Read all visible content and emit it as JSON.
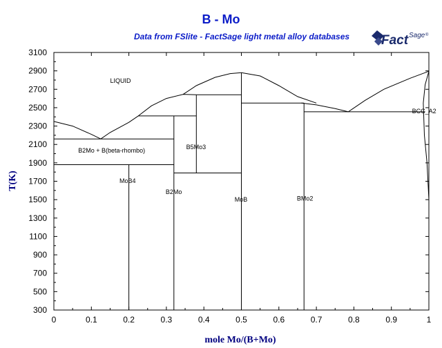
{
  "title": "B - Mo",
  "subtitle": "Data from FSlite - FactSage light metal alloy databases",
  "logo": {
    "main": "Fact",
    "sup": "Sage",
    "mark": "®",
    "color": "#1a2a6c"
  },
  "colors": {
    "title": "#0b1cc8",
    "axis_title": "#000080",
    "lines": "#000000"
  },
  "chart_data": {
    "type": "phase-diagram",
    "xlabel": "mole Mo/(B+Mo)",
    "ylabel": "T(K)",
    "xlim": [
      0,
      1
    ],
    "ylim": [
      300,
      3100
    ],
    "xticks": [
      0,
      0.1,
      0.2,
      0.3,
      0.4,
      0.5,
      0.6,
      0.7,
      0.8,
      0.9,
      1
    ],
    "xtick_labels": [
      "0",
      "0.1",
      "0.2",
      "0.3",
      "0.4",
      "0.5",
      "0.6",
      "0.7",
      "0.8",
      "0.9",
      "1"
    ],
    "yticks": [
      300,
      500,
      700,
      900,
      1100,
      1300,
      1500,
      1700,
      1900,
      2100,
      2300,
      2500,
      2700,
      2900,
      3100
    ],
    "ytick_labels": [
      "300",
      "500",
      "700",
      "900",
      "1100",
      "1300",
      "1500",
      "1700",
      "1900",
      "2100",
      "2300",
      "2500",
      "2700",
      "2900",
      "3100"
    ],
    "lines": [
      {
        "name": "liquidus-b-side",
        "points": [
          [
            0,
            2350
          ],
          [
            0.05,
            2300
          ],
          [
            0.1,
            2210
          ],
          [
            0.125,
            2160
          ]
        ]
      },
      {
        "name": "liquidus-b2mo-side",
        "points": [
          [
            0.125,
            2160
          ],
          [
            0.15,
            2230
          ],
          [
            0.2,
            2340
          ],
          [
            0.225,
            2410
          ]
        ]
      },
      {
        "name": "liquidus-b2mo-top",
        "points": [
          [
            0.225,
            2410
          ],
          [
            0.26,
            2520
          ],
          [
            0.3,
            2600
          ],
          [
            0.345,
            2645
          ],
          [
            0.38,
            2640
          ]
        ]
      },
      {
        "name": "liquidus-dome-left",
        "points": [
          [
            0.345,
            2645
          ],
          [
            0.38,
            2740
          ],
          [
            0.43,
            2830
          ],
          [
            0.47,
            2870
          ],
          [
            0.5,
            2880
          ]
        ]
      },
      {
        "name": "liquidus-dome-right",
        "points": [
          [
            0.5,
            2880
          ],
          [
            0.55,
            2845
          ],
          [
            0.6,
            2740
          ],
          [
            0.65,
            2620
          ],
          [
            0.7,
            2550
          ]
        ]
      },
      {
        "name": "liquidus-bmo2-tail",
        "points": [
          [
            0.66,
            2550
          ],
          [
            0.7,
            2530
          ],
          [
            0.75,
            2490
          ],
          [
            0.785,
            2455
          ]
        ]
      },
      {
        "name": "liquidus-mo-side",
        "points": [
          [
            0.785,
            2455
          ],
          [
            0.83,
            2580
          ],
          [
            0.88,
            2700
          ],
          [
            0.95,
            2820
          ],
          [
            1,
            2896
          ]
        ]
      },
      {
        "name": "mo-solvus",
        "points": [
          [
            1,
            2896
          ],
          [
            0.99,
            2750
          ],
          [
            0.985,
            2550
          ],
          [
            0.988,
            2200
          ],
          [
            0.995,
            1900
          ],
          [
            1,
            1500
          ]
        ]
      },
      {
        "name": "eutectic-2160",
        "points": [
          [
            0,
            2160
          ],
          [
            0.32,
            2160
          ]
        ]
      },
      {
        "name": "eutectic-1880",
        "points": [
          [
            0,
            1880
          ],
          [
            0.32,
            1880
          ]
        ]
      },
      {
        "name": "peritectic-2410",
        "points": [
          [
            0.225,
            2410
          ],
          [
            0.38,
            2410
          ]
        ]
      },
      {
        "name": "b5mo3-top-2640",
        "points": [
          [
            0.38,
            2640
          ],
          [
            0.5,
            2640
          ]
        ]
      },
      {
        "name": "b5mo3-bottom-1790",
        "points": [
          [
            0.32,
            1790
          ],
          [
            0.5,
            1790
          ]
        ]
      },
      {
        "name": "bmo-2550",
        "points": [
          [
            0.5,
            2550
          ],
          [
            0.667,
            2550
          ]
        ]
      },
      {
        "name": "eutectic-2455",
        "points": [
          [
            0.667,
            2455
          ],
          [
            0.99,
            2455
          ]
        ]
      },
      {
        "name": "mob4-vertical",
        "points": [
          [
            0.2,
            300
          ],
          [
            0.2,
            1880
          ]
        ]
      },
      {
        "name": "b2mo-vertical",
        "points": [
          [
            0.32,
            300
          ],
          [
            0.32,
            2410
          ]
        ]
      },
      {
        "name": "b5mo3-vertical",
        "points": [
          [
            0.38,
            1790
          ],
          [
            0.38,
            2640
          ]
        ]
      },
      {
        "name": "mob-vertical",
        "points": [
          [
            0.5,
            300
          ],
          [
            0.5,
            2880
          ]
        ]
      },
      {
        "name": "bmo2-vertical",
        "points": [
          [
            0.667,
            300
          ],
          [
            0.667,
            2550
          ]
        ]
      }
    ],
    "annotations": [
      {
        "text": "LIQUID",
        "x": 0.15,
        "y": 2770
      },
      {
        "text": "B2Mo + B(beta-rhombo)",
        "x": 0.065,
        "y": 2010
      },
      {
        "text": "B5Mo3",
        "x": 0.353,
        "y": 2050
      },
      {
        "text": "MoB4",
        "x": 0.175,
        "y": 1680
      },
      {
        "text": "B2Mo",
        "x": 0.298,
        "y": 1560
      },
      {
        "text": "MoB",
        "x": 0.482,
        "y": 1480
      },
      {
        "text": "BMo2",
        "x": 0.648,
        "y": 1490
      },
      {
        "text": "BCC_A2",
        "x": 0.955,
        "y": 2440
      }
    ]
  }
}
